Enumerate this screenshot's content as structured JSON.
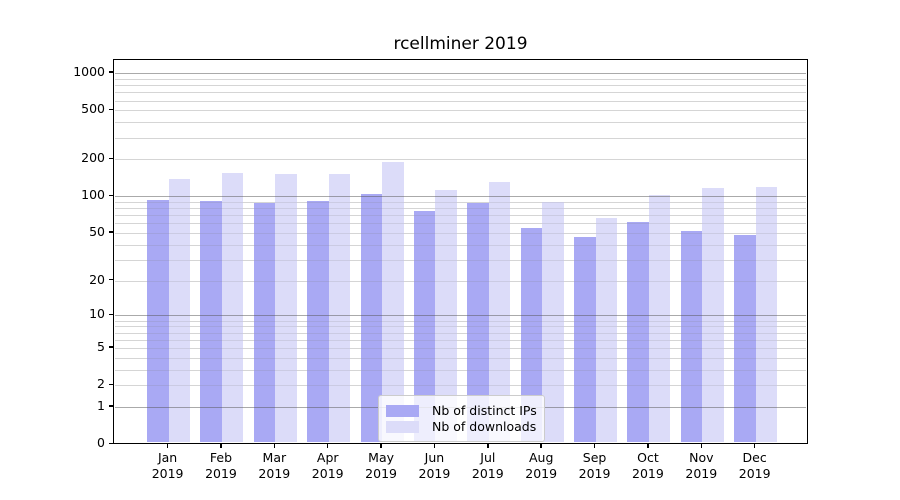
{
  "title": "rcellminer 2019",
  "chart_data": {
    "type": "bar",
    "title": "rcellminer 2019",
    "categories": [
      "Jan 2019",
      "Feb 2019",
      "Mar 2019",
      "Apr 2019",
      "May 2019",
      "Jun 2019",
      "Jul 2019",
      "Aug 2019",
      "Sep 2019",
      "Oct 2019",
      "Nov 2019",
      "Dec 2019"
    ],
    "series": [
      {
        "name": "Nb of distinct IPs",
        "color": "#a9a9f4",
        "values": [
          93,
          91,
          89,
          92,
          105,
          76,
          88,
          55,
          46,
          62,
          52,
          48
        ]
      },
      {
        "name": "Nb of downloads",
        "color": "#dcdcf9",
        "values": [
          138,
          155,
          151,
          151,
          190,
          112,
          130,
          90,
          66,
          103,
          117,
          120
        ]
      }
    ],
    "xlabel": "",
    "ylabel": "",
    "yscale": "log1p",
    "ylim": [
      0,
      1294
    ],
    "yticks": [
      1000,
      500,
      200,
      100,
      50,
      20,
      10,
      5,
      2,
      1,
      0
    ],
    "grid": "horizontal, minor log gridlines",
    "legend_position": "lower center"
  },
  "legend": {
    "items": [
      {
        "label": "Nb of distinct IPs",
        "color": "#a9a9f4"
      },
      {
        "label": "Nb of downloads",
        "color": "#dcdcf9"
      }
    ]
  }
}
